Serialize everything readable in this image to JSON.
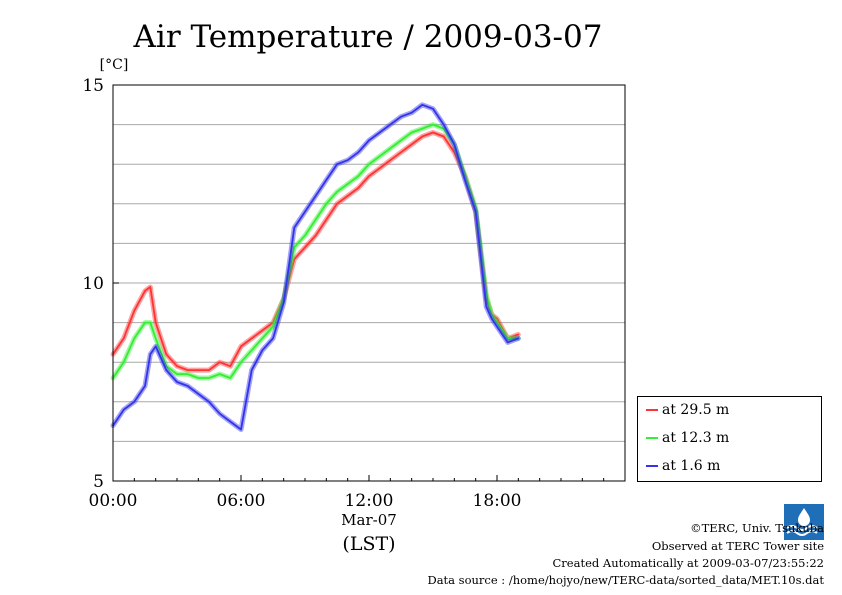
{
  "chart_data": {
    "type": "line",
    "title": "Air Temperature / 2009-03-07",
    "ylabel": "[°C]",
    "xlabel": "(LST)",
    "x_date_label": "Mar-07",
    "xlim": [
      "00:00",
      "24:00"
    ],
    "ylim": [
      5,
      15
    ],
    "x_ticks": [
      "00:00",
      "06:00",
      "12:00",
      "18:00"
    ],
    "y_ticks": [
      "5",
      "10",
      "15"
    ],
    "grid": true,
    "legend_position": "bottom-right, outside plot",
    "x": [
      "00:00",
      "00:30",
      "01:00",
      "01:30",
      "01:45",
      "02:00",
      "02:30",
      "03:00",
      "03:30",
      "04:00",
      "04:30",
      "05:00",
      "05:30",
      "06:00",
      "06:30",
      "07:00",
      "07:30",
      "08:00",
      "08:30",
      "09:00",
      "09:30",
      "10:00",
      "10:30",
      "11:00",
      "11:30",
      "12:00",
      "12:30",
      "13:00",
      "13:30",
      "14:00",
      "14:30",
      "15:00",
      "15:30",
      "16:00",
      "16:30",
      "17:00",
      "17:30",
      "17:45",
      "18:00",
      "18:30",
      "19:00"
    ],
    "series": [
      {
        "name": "at 29.5 m",
        "color": "#ff3333",
        "values": [
          8.2,
          8.6,
          9.3,
          9.8,
          9.9,
          9.0,
          8.2,
          7.9,
          7.8,
          7.8,
          7.8,
          8.0,
          7.9,
          8.4,
          8.6,
          8.8,
          9.0,
          9.6,
          10.6,
          10.9,
          11.2,
          11.6,
          12.0,
          12.2,
          12.4,
          12.7,
          12.9,
          13.1,
          13.3,
          13.5,
          13.7,
          13.8,
          13.7,
          13.3,
          12.7,
          11.8,
          9.6,
          9.2,
          9.1,
          8.6,
          8.7
        ]
      },
      {
        "name": "at 12.3 m",
        "color": "#33ee33",
        "values": [
          7.6,
          8.0,
          8.6,
          9.0,
          9.0,
          8.6,
          7.9,
          7.7,
          7.7,
          7.6,
          7.6,
          7.7,
          7.6,
          8.0,
          8.3,
          8.6,
          8.9,
          9.6,
          10.9,
          11.2,
          11.6,
          12.0,
          12.3,
          12.5,
          12.7,
          13.0,
          13.2,
          13.4,
          13.6,
          13.8,
          13.9,
          14.0,
          13.9,
          13.5,
          12.7,
          11.9,
          9.7,
          9.2,
          9.0,
          8.6,
          8.6
        ]
      },
      {
        "name": "at 1.6 m",
        "color": "#3333ee",
        "values": [
          6.4,
          6.8,
          7.0,
          7.4,
          8.2,
          8.4,
          7.8,
          7.5,
          7.4,
          7.2,
          7.0,
          6.7,
          6.5,
          6.3,
          7.8,
          8.3,
          8.6,
          9.5,
          11.4,
          11.8,
          12.2,
          12.6,
          13.0,
          13.1,
          13.3,
          13.6,
          13.8,
          14.0,
          14.2,
          14.3,
          14.5,
          14.4,
          14.0,
          13.5,
          12.6,
          11.8,
          9.4,
          9.1,
          8.9,
          8.5,
          8.6
        ]
      }
    ]
  },
  "credits": {
    "copyright": "©TERC, Univ. Tsukuba",
    "observed": "Observed at TERC Tower site",
    "created": "Created Automatically at 2009-03-07/23:55:22",
    "source": "Data source : /home/hojyo/new/TERC-data/sorted_data/MET.10s.dat",
    "logo_text": "TERC"
  }
}
